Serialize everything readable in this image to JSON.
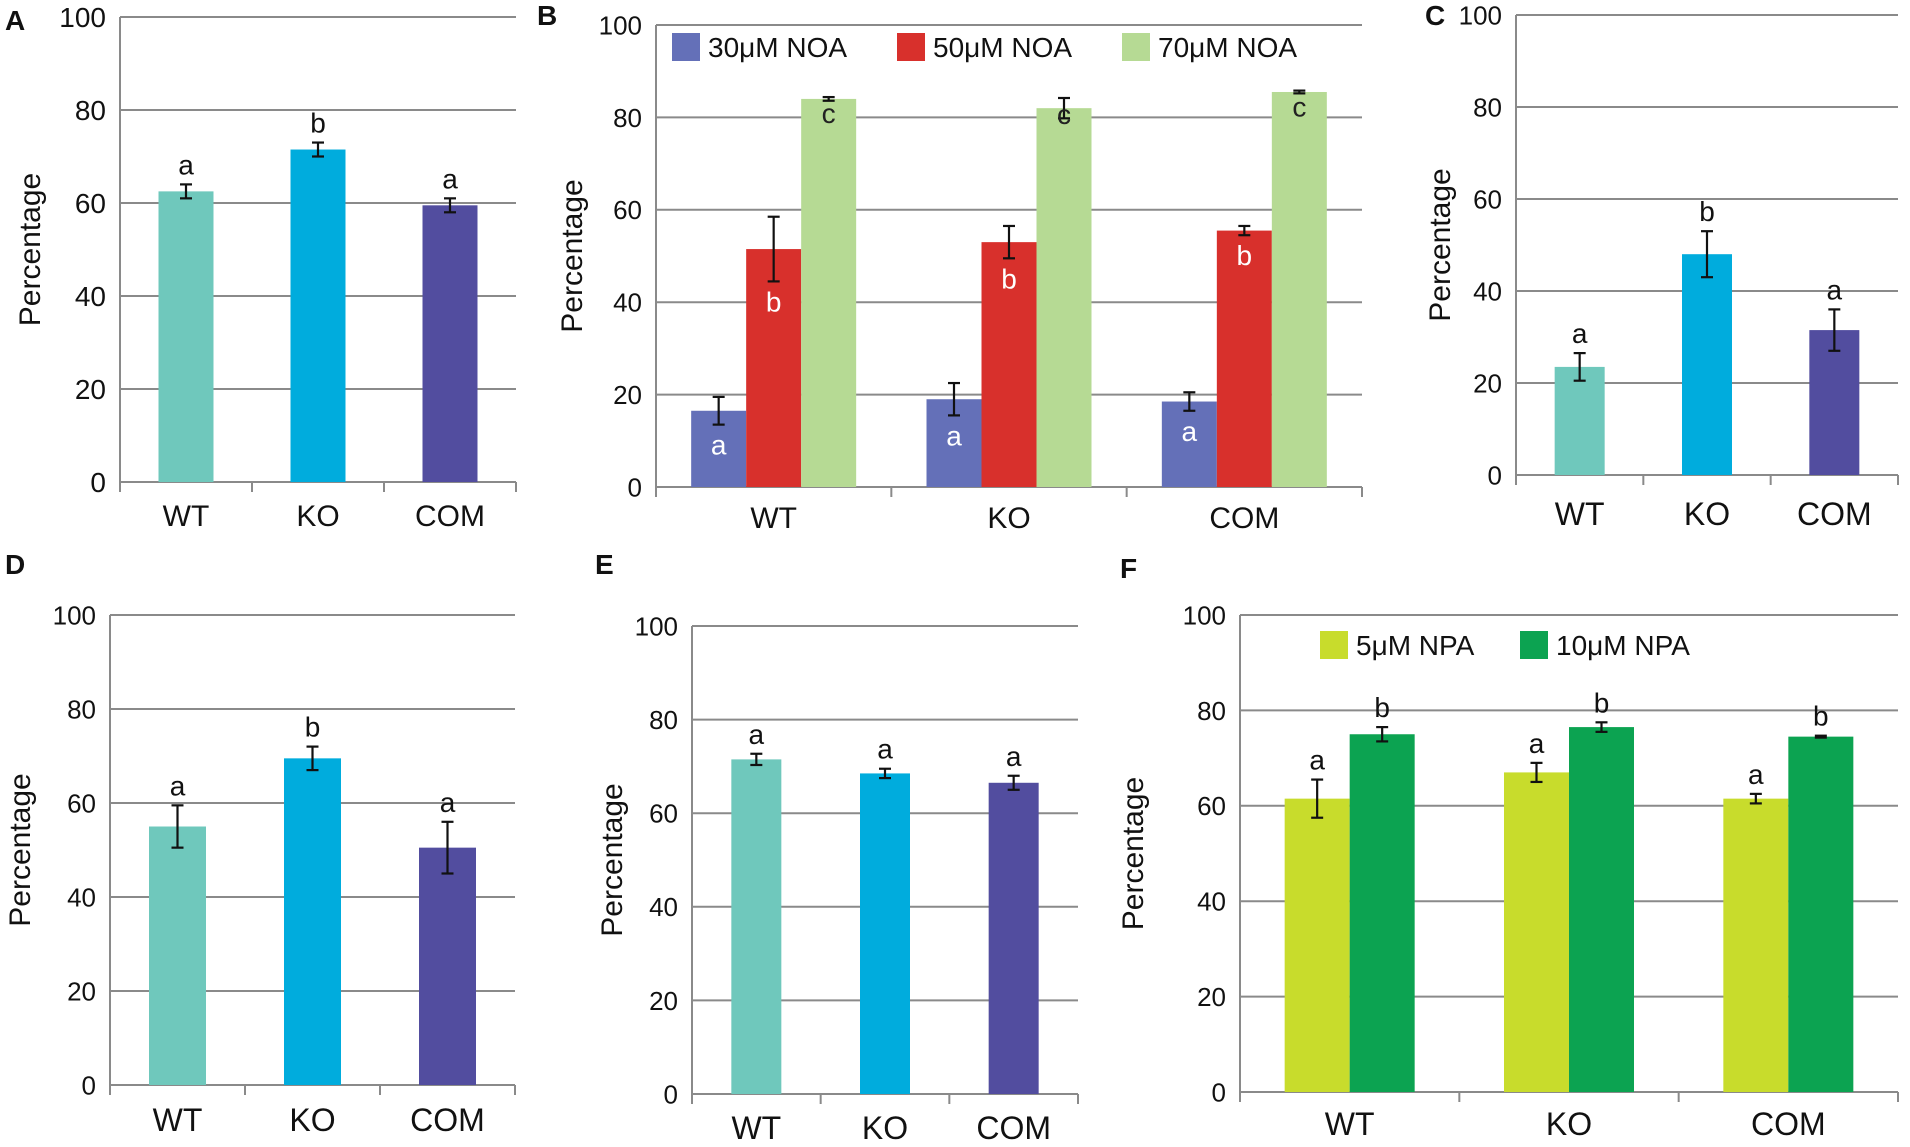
{
  "figure": {
    "panel_labels": [
      "A",
      "B",
      "C",
      "D",
      "E",
      "F"
    ]
  },
  "chart_data": [
    {
      "panel": "A",
      "type": "bar",
      "categories": [
        "WT",
        "KO",
        "COM"
      ],
      "ylabel": "Percentage",
      "ylim": [
        0,
        100
      ],
      "yticks": [
        0,
        20,
        40,
        60,
        80,
        100
      ],
      "grid": true,
      "legend": null,
      "series": [
        {
          "name": "",
          "values": [
            62.5,
            71.5,
            59.5
          ],
          "errors": [
            1.5,
            1.5,
            1.5
          ],
          "letters": [
            "a",
            "b",
            "a"
          ],
          "letter_pos": "above",
          "colors": [
            "#6fc8bc",
            "#00acdd",
            "#524d9f"
          ]
        }
      ]
    },
    {
      "panel": "B",
      "type": "bar",
      "categories": [
        "WT",
        "KO",
        "COM"
      ],
      "ylabel": "Percentage",
      "ylim": [
        0,
        100
      ],
      "yticks": [
        0,
        20,
        40,
        60,
        80,
        100
      ],
      "grid": true,
      "legend": "top",
      "series": [
        {
          "name": "30μM NOA",
          "color": "#6470b8",
          "values": [
            16.5,
            19,
            18.5
          ],
          "errors": [
            3,
            3.5,
            2
          ],
          "letters": [
            "a",
            "a",
            "a"
          ],
          "letter_pos": "inside"
        },
        {
          "name": "50μM NOA",
          "color": "#d8302c",
          "values": [
            51.5,
            53,
            55.5
          ],
          "errors": [
            7,
            3.5,
            1
          ],
          "letters": [
            "b",
            "b",
            "b"
          ],
          "letter_pos": "inside"
        },
        {
          "name": "70μM NOA",
          "color": "#b6da94",
          "values": [
            84,
            82,
            85.5
          ],
          "errors": [
            0.4,
            2.2,
            0.3
          ],
          "letters": [
            "c",
            "c",
            "c"
          ],
          "letter_pos": "inside"
        }
      ]
    },
    {
      "panel": "C",
      "type": "bar",
      "categories": [
        "WT",
        "KO",
        "COM"
      ],
      "ylabel": "Percentage",
      "ylim": [
        0,
        100
      ],
      "yticks": [
        0,
        20,
        40,
        60,
        80,
        100
      ],
      "grid": true,
      "legend": null,
      "series": [
        {
          "name": "",
          "values": [
            23.5,
            48,
            31.5
          ],
          "errors": [
            3,
            5,
            4.5
          ],
          "letters": [
            "a",
            "b",
            "a"
          ],
          "letter_pos": "above",
          "colors": [
            "#6fc8bc",
            "#00acdd",
            "#524d9f"
          ]
        }
      ]
    },
    {
      "panel": "D",
      "type": "bar",
      "categories": [
        "WT",
        "KO",
        "COM"
      ],
      "ylabel": "Percentage",
      "ylim": [
        0,
        100
      ],
      "yticks": [
        0,
        20,
        40,
        60,
        80,
        100
      ],
      "grid": true,
      "legend": null,
      "series": [
        {
          "name": "",
          "values": [
            55,
            69.5,
            50.5
          ],
          "errors": [
            4.5,
            2.5,
            5.5
          ],
          "letters": [
            "a",
            "b",
            "a"
          ],
          "letter_pos": "above",
          "colors": [
            "#6fc8bc",
            "#00acdd",
            "#524d9f"
          ]
        }
      ]
    },
    {
      "panel": "E",
      "type": "bar",
      "categories": [
        "WT",
        "KO",
        "COM"
      ],
      "ylabel": "Percentage",
      "ylim": [
        0,
        100
      ],
      "yticks": [
        0,
        20,
        40,
        60,
        80,
        100
      ],
      "grid": true,
      "legend": null,
      "series": [
        {
          "name": "",
          "values": [
            71.5,
            68.5,
            66.5
          ],
          "errors": [
            1.2,
            1,
            1.5
          ],
          "letters": [
            "a",
            "a",
            "a"
          ],
          "letter_pos": "above",
          "colors": [
            "#6fc8bc",
            "#00acdd",
            "#524d9f"
          ]
        }
      ]
    },
    {
      "panel": "F",
      "type": "bar",
      "categories": [
        "WT",
        "KO",
        "COM"
      ],
      "ylabel": "Percentage",
      "ylim": [
        0,
        100
      ],
      "yticks": [
        0,
        20,
        40,
        60,
        80,
        100
      ],
      "grid": true,
      "legend": "top",
      "series": [
        {
          "name": "5μM NPA",
          "color": "#c8dc2c",
          "values": [
            61.5,
            67,
            61.5
          ],
          "errors": [
            4,
            2,
            1
          ],
          "letters": [
            "a",
            "a",
            "a"
          ],
          "letter_pos": "above"
        },
        {
          "name": "10μM NPA",
          "color": "#0ca351",
          "values": [
            75,
            76.5,
            74.5
          ],
          "errors": [
            1.5,
            1,
            0.2
          ],
          "letters": [
            "b",
            "b",
            "b"
          ],
          "letter_pos": "above"
        }
      ]
    }
  ]
}
